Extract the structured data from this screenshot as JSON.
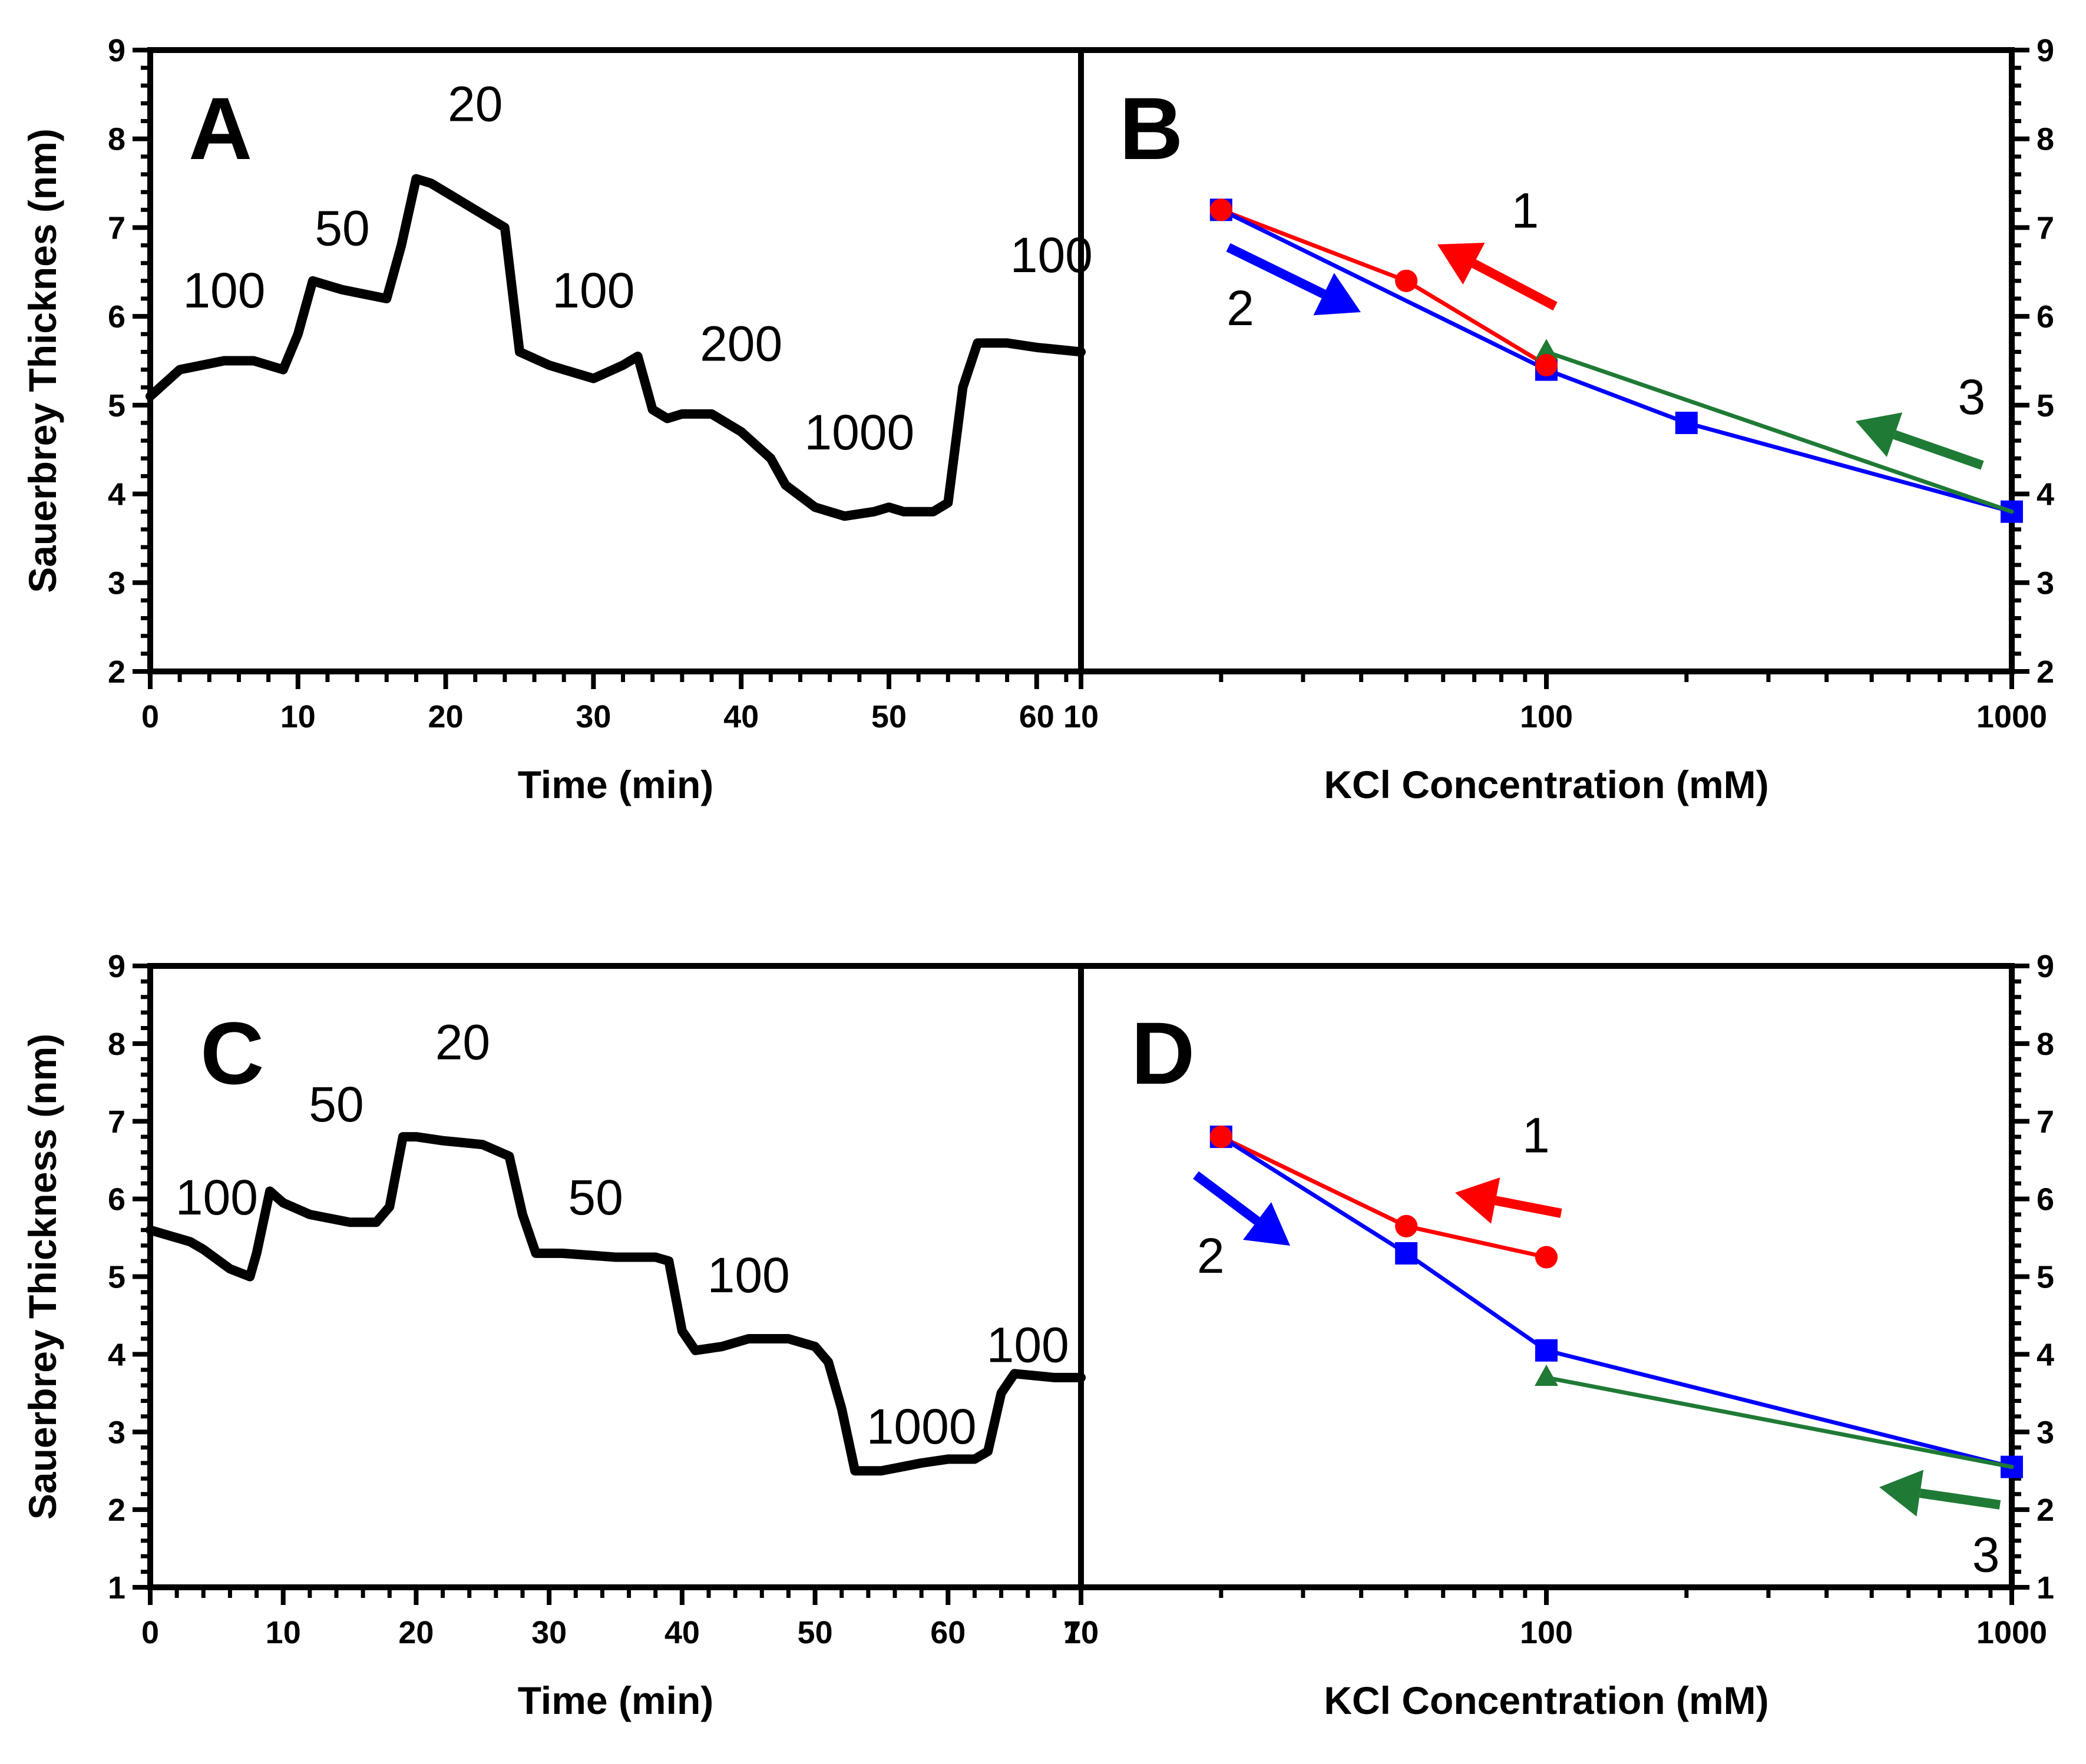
{
  "chart_data": [
    {
      "type": "line",
      "panel": "A",
      "xlabel": "Time (min)",
      "ylabel": "Sauerbrey Thicknes (nm)",
      "xlim": [
        0,
        63
      ],
      "ylim": [
        2,
        9
      ],
      "xticks": [
        "0",
        "10",
        "20",
        "30",
        "40",
        "50",
        "60"
      ],
      "yticks": [
        "2",
        "3",
        "4",
        "5",
        "6",
        "7",
        "8",
        "9"
      ],
      "series": [
        {
          "name": "thickness",
          "color": "#000000",
          "x": [
            0,
            2,
            5,
            7,
            9,
            10,
            11,
            13,
            16,
            17,
            18,
            19,
            21,
            22,
            24,
            25,
            27,
            28,
            30,
            32,
            33,
            34,
            35,
            36,
            38,
            39,
            40,
            42,
            43,
            45,
            47,
            49,
            50,
            51,
            53,
            54,
            55,
            56,
            58,
            60,
            63
          ],
          "y": [
            5.1,
            5.4,
            5.5,
            5.5,
            5.4,
            5.8,
            6.4,
            6.3,
            6.2,
            6.8,
            7.55,
            7.5,
            7.3,
            7.2,
            7.0,
            5.6,
            5.45,
            5.4,
            5.3,
            5.45,
            5.55,
            4.95,
            4.85,
            4.9,
            4.9,
            4.8,
            4.7,
            4.4,
            4.1,
            3.85,
            3.75,
            3.8,
            3.85,
            3.8,
            3.8,
            3.9,
            5.2,
            5.7,
            5.7,
            5.65,
            5.6
          ]
        }
      ],
      "annotations": [
        {
          "text": "100",
          "x": 5,
          "y": 6.1
        },
        {
          "text": "50",
          "x": 13,
          "y": 6.8
        },
        {
          "text": "20",
          "x": 22,
          "y": 8.2
        },
        {
          "text": "100",
          "x": 30,
          "y": 6.1
        },
        {
          "text": "200",
          "x": 40,
          "y": 5.5
        },
        {
          "text": "1000",
          "x": 48,
          "y": 4.5
        },
        {
          "text": "100",
          "x": 61,
          "y": 6.5
        }
      ]
    },
    {
      "type": "line",
      "panel": "B",
      "xlabel": "KCl Concentration (mM)",
      "xscale": "log",
      "xlim": [
        10,
        1000
      ],
      "ylim": [
        2,
        9
      ],
      "xticks": [
        "10",
        "100",
        "1000"
      ],
      "yticks": [
        "2",
        "3",
        "4",
        "5",
        "6",
        "7",
        "8",
        "9"
      ],
      "series": [
        {
          "name": "1",
          "color": "#ff0000",
          "marker": "circle",
          "x": [
            20,
            50,
            100
          ],
          "y": [
            7.2,
            6.4,
            5.45
          ]
        },
        {
          "name": "2",
          "color": "#0000ff",
          "marker": "square",
          "x": [
            20,
            100,
            200,
            1000
          ],
          "y": [
            7.2,
            5.4,
            4.8,
            3.8
          ]
        },
        {
          "name": "3",
          "color": "#1f7a35",
          "marker": "triangle",
          "x": [
            1000,
            100
          ],
          "y": [
            3.8,
            5.6
          ]
        }
      ],
      "annotations": [
        {
          "text": "1",
          "x": 90,
          "y": 7.0
        },
        {
          "text": "2",
          "x": 22,
          "y": 5.9
        },
        {
          "text": "3",
          "x": 820,
          "y": 4.9
        }
      ]
    },
    {
      "type": "line",
      "panel": "C",
      "xlabel": "Time (min)",
      "ylabel": "Sauerbrey Thickness (nm)",
      "xlim": [
        0,
        70
      ],
      "ylim": [
        1,
        9
      ],
      "xticks": [
        "0",
        "10",
        "20",
        "30",
        "40",
        "50",
        "60",
        "70"
      ],
      "yticks": [
        "1",
        "2",
        "3",
        "4",
        "5",
        "6",
        "7",
        "8",
        "9"
      ],
      "series": [
        {
          "name": "thickness",
          "color": "#000000",
          "x": [
            0,
            3,
            4,
            6,
            7.5,
            8,
            9,
            10,
            12,
            15,
            17,
            18,
            19,
            20,
            22,
            25,
            27,
            28,
            29,
            31,
            35,
            38,
            39,
            40,
            41,
            43,
            45,
            48,
            50,
            51,
            52,
            53,
            55,
            58,
            60,
            62,
            63,
            64,
            65,
            68,
            70
          ],
          "y": [
            5.6,
            5.45,
            5.35,
            5.1,
            5.0,
            5.3,
            6.1,
            5.95,
            5.8,
            5.7,
            5.7,
            5.9,
            6.8,
            6.8,
            6.75,
            6.7,
            6.55,
            5.8,
            5.3,
            5.3,
            5.25,
            5.25,
            5.2,
            4.3,
            4.05,
            4.1,
            4.2,
            4.2,
            4.1,
            3.9,
            3.3,
            2.5,
            2.5,
            2.6,
            2.65,
            2.65,
            2.75,
            3.5,
            3.75,
            3.7,
            3.7
          ]
        }
      ],
      "annotations": [
        {
          "text": "100",
          "x": 5,
          "y": 5.8
        },
        {
          "text": "50",
          "x": 14,
          "y": 7.0
        },
        {
          "text": "20",
          "x": 23.5,
          "y": 7.8
        },
        {
          "text": "50",
          "x": 33.5,
          "y": 5.8
        },
        {
          "text": "100",
          "x": 45,
          "y": 4.8
        },
        {
          "text": "1000",
          "x": 58,
          "y": 2.85
        },
        {
          "text": "100",
          "x": 66,
          "y": 3.9
        }
      ]
    },
    {
      "type": "line",
      "panel": "D",
      "xlabel": "KCl Concentration (mM)",
      "xscale": "log",
      "xlim": [
        10,
        1000
      ],
      "ylim": [
        1,
        9
      ],
      "xticks": [
        "10",
        "100",
        "1000"
      ],
      "yticks": [
        "1",
        "2",
        "3",
        "4",
        "5",
        "6",
        "7",
        "8",
        "9"
      ],
      "series": [
        {
          "name": "1",
          "color": "#ff0000",
          "marker": "circle",
          "x": [
            20,
            50,
            100
          ],
          "y": [
            6.8,
            5.65,
            5.25
          ]
        },
        {
          "name": "2",
          "color": "#0000ff",
          "marker": "square",
          "x": [
            20,
            50,
            100,
            1000
          ],
          "y": [
            6.8,
            5.3,
            4.05,
            2.55
          ]
        },
        {
          "name": "3",
          "color": "#1f7a35",
          "marker": "triangle",
          "x": [
            1000,
            100
          ],
          "y": [
            2.55,
            3.7
          ]
        }
      ],
      "annotations": [
        {
          "text": "1",
          "x": 95,
          "y": 6.6
        },
        {
          "text": "2",
          "x": 19,
          "y": 5.05
        },
        {
          "text": "3",
          "x": 880,
          "y": 1.2
        }
      ]
    }
  ]
}
